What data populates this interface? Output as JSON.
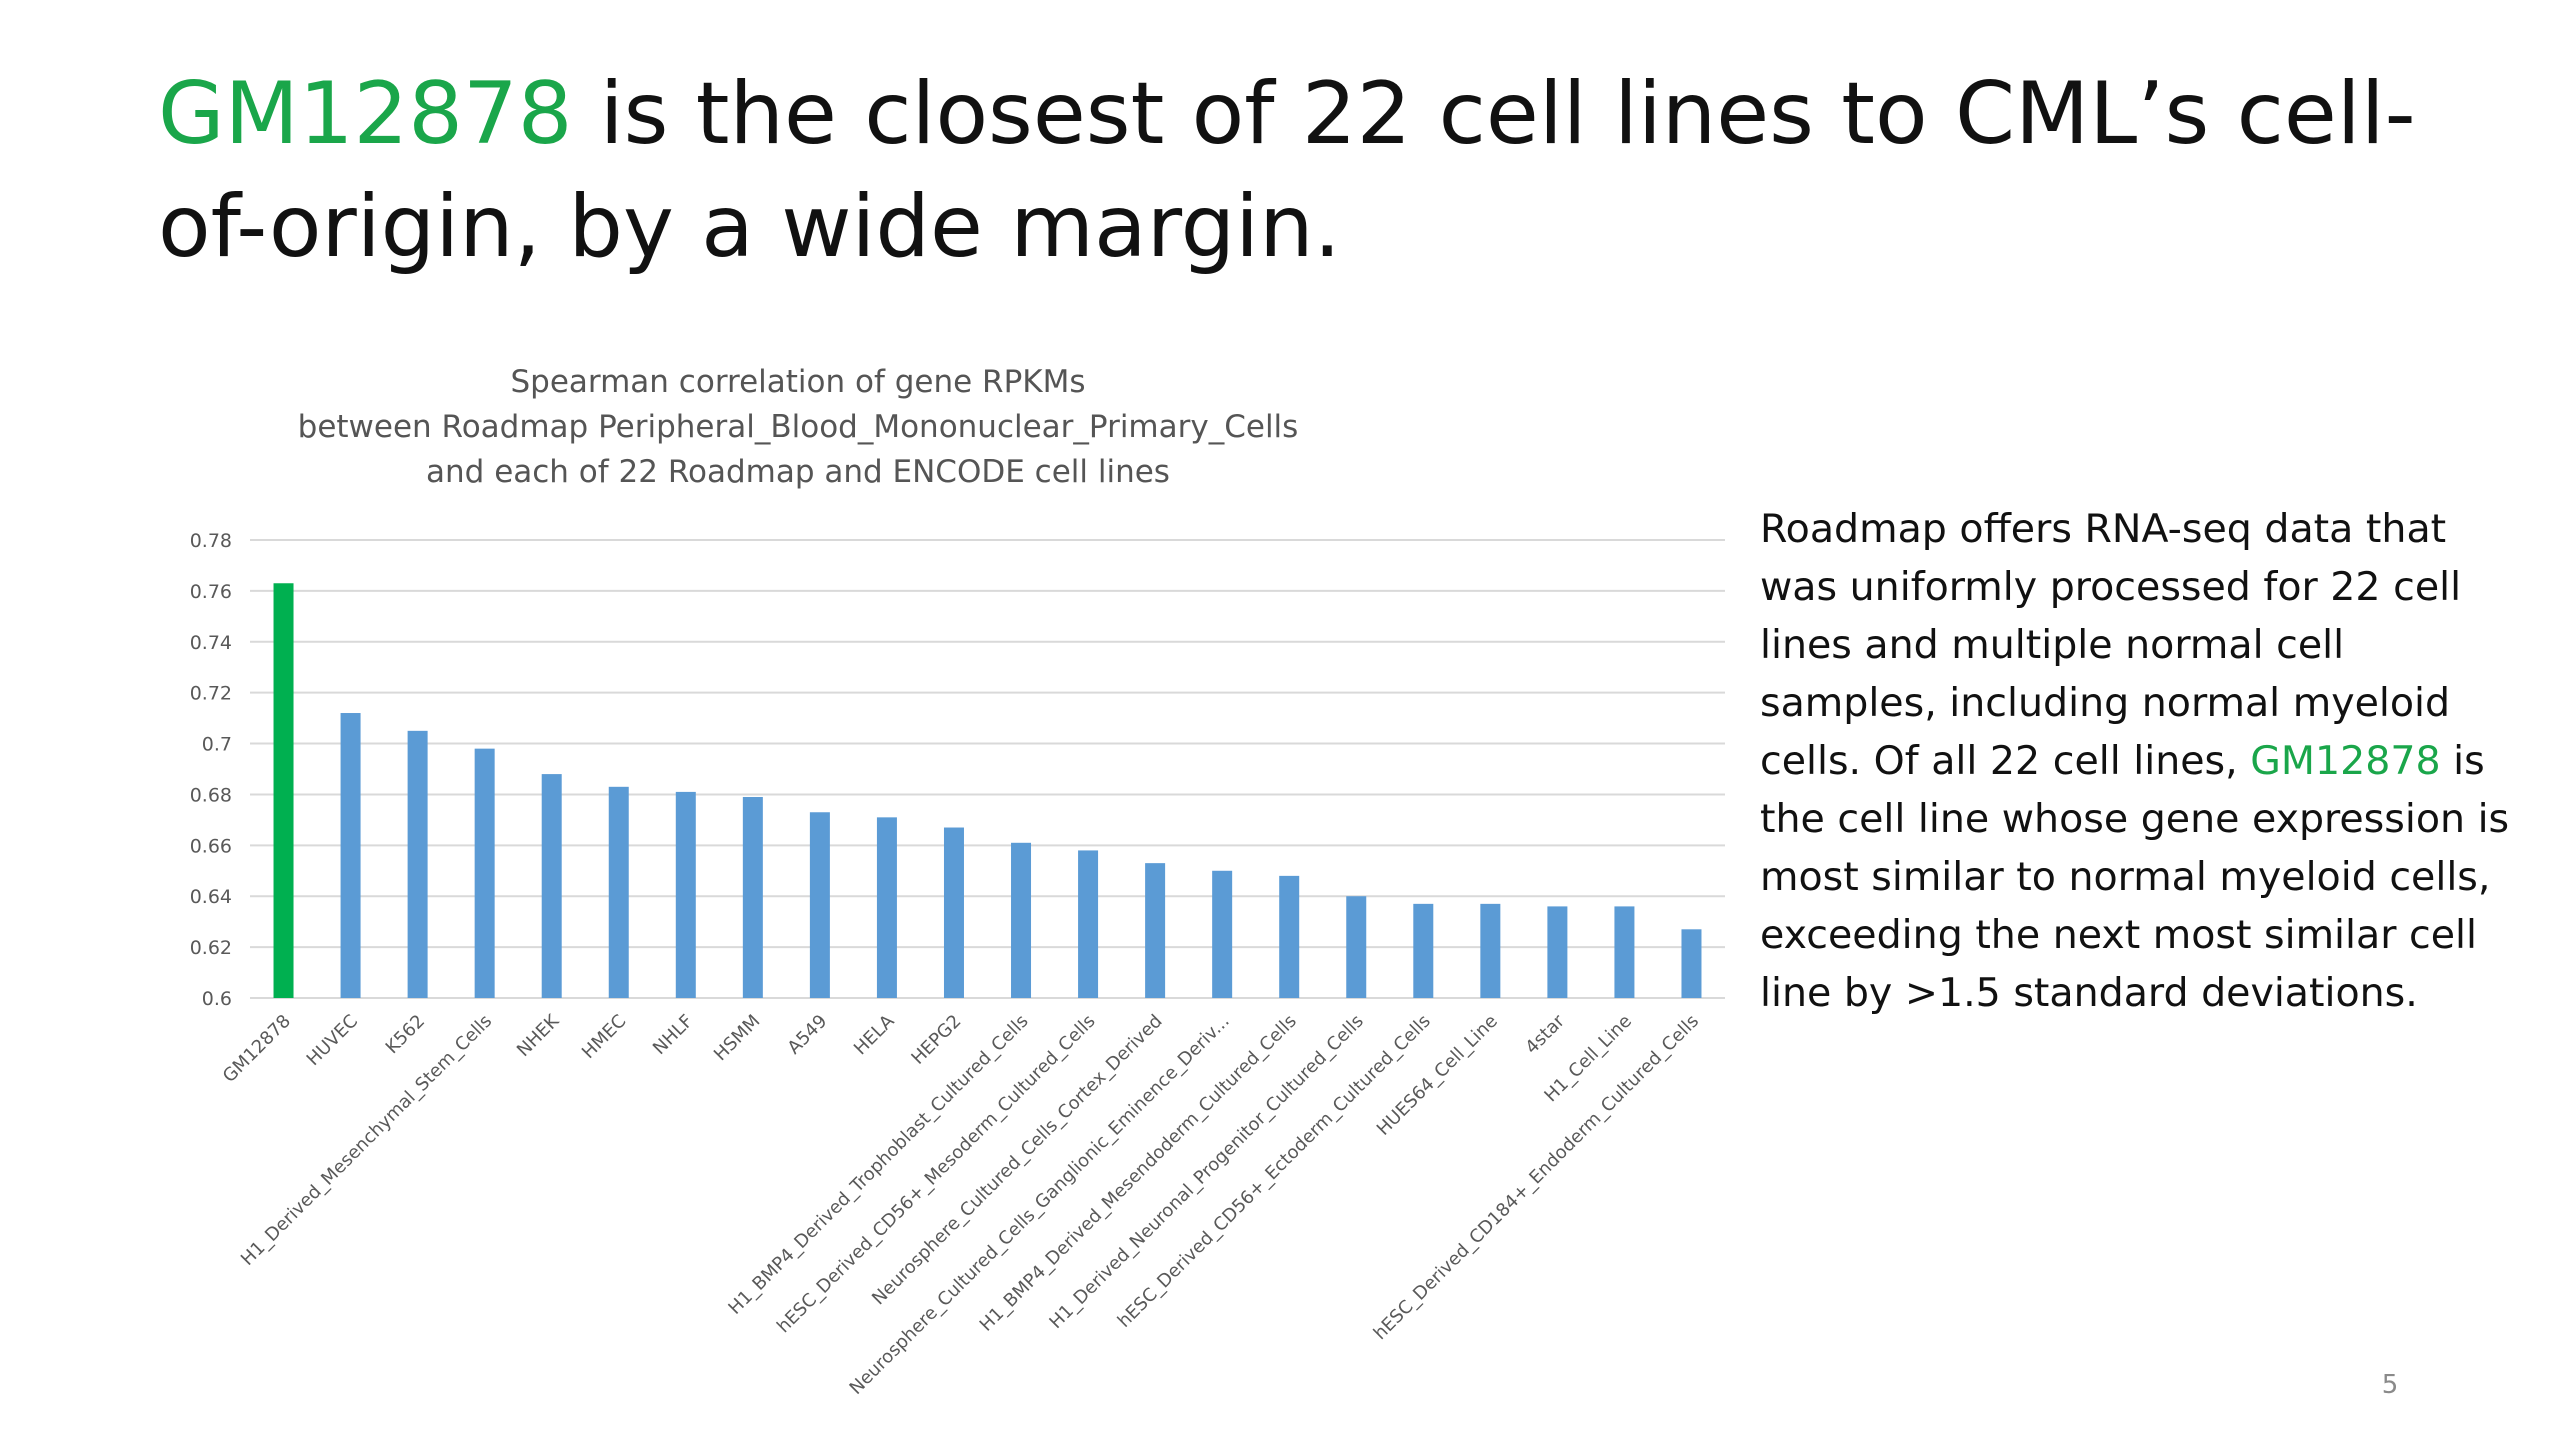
{
  "slide": {
    "title_highlight": "GM12878",
    "title_rest": " is the closest of 22 cell lines to CML’s cell-of-origin, by a wide margin.",
    "page_number": "5",
    "accent_color": "#1aa64a"
  },
  "side_text": {
    "part1": "Roadmap offers RNA-seq data that was uniformly processed for 22 cell lines and multiple normal cell samples, including normal myeloid cells. Of all 22 cell lines, ",
    "highlight": "GM12878",
    "part2": " is the cell line whose gene expression is most similar to normal myeloid cells, exceeding the next most similar cell line by >1.5 standard deviations."
  },
  "chart_data": {
    "type": "bar",
    "title_lines": [
      "Spearman correlation of gene RPKMs",
      "between Roadmap Peripheral_Blood_Mononuclear_Primary_Cells",
      "and each of 22 Roadmap and ENCODE cell lines"
    ],
    "xlabel": "",
    "ylabel": "",
    "ylim": [
      0.6,
      0.78
    ],
    "yticks": [
      "0.6",
      "0.62",
      "0.64",
      "0.66",
      "0.68",
      "0.7",
      "0.72",
      "0.74",
      "0.76",
      "0.78"
    ],
    "grid": true,
    "categories": [
      "GM12878",
      "HUVEC",
      "K562",
      "H1_Derived_Mesenchymal_Stem_Cells",
      "NHEK",
      "HMEC",
      "NHLF",
      "HSMM",
      "A549",
      "HELA",
      "HEPG2",
      "H1_BMP4_Derived_Trophoblast_Cultured_Cells",
      "hESC_Derived_CD56+_Mesoderm_Cultured_Cells",
      "Neurosphere_Cultured_Cells_Cortex_Derived",
      "Neurosphere_Cultured_Cells_Ganglionic_Eminence_Deriv...",
      "H1_BMP4_Derived_Mesendoderm_Cultured_Cells",
      "H1_Derived_Neuronal_Progenitor_Cultured_Cells",
      "hESC_Derived_CD56+_Ectoderm_Cultured_Cells",
      "HUES64_Cell_Line",
      "4star",
      "H1_Cell_Line",
      "hESC_Derived_CD184+_Endoderm_Cultured_Cells"
    ],
    "values": [
      0.763,
      0.712,
      0.705,
      0.698,
      0.688,
      0.683,
      0.681,
      0.679,
      0.673,
      0.671,
      0.667,
      0.661,
      0.658,
      0.653,
      0.65,
      0.648,
      0.64,
      0.637,
      0.637,
      0.636,
      0.636,
      0.627
    ],
    "bar_color": "#5b9bd5",
    "highlight_color": "#00b050",
    "highlight_index": 0
  }
}
